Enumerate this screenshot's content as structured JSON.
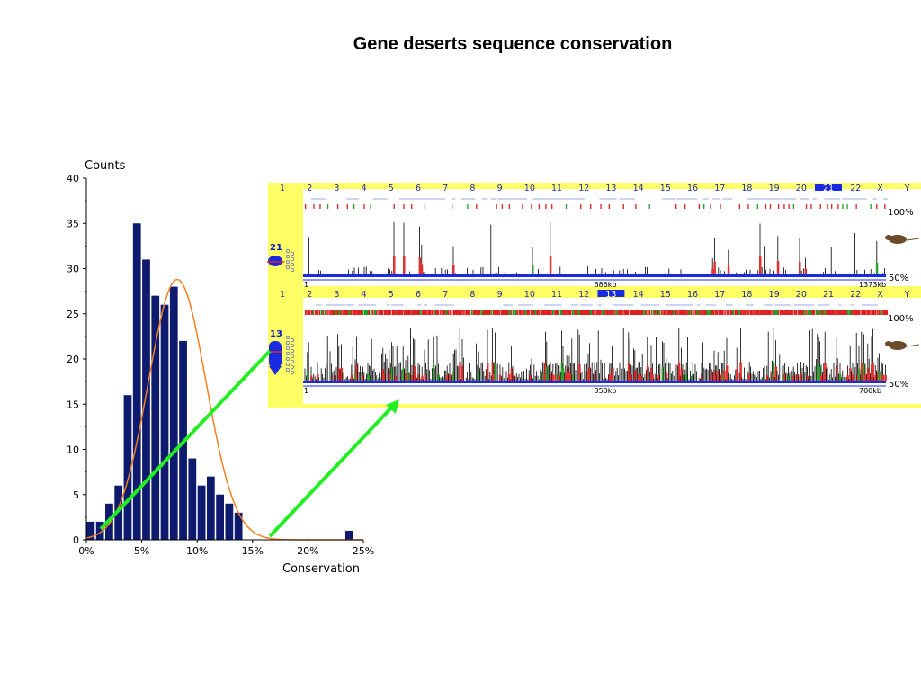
{
  "title": "Gene deserts sequence conservation",
  "chart_data": {
    "type": "bar",
    "ylabel": "Counts",
    "xlabel": "Conservation",
    "ylim": [
      0,
      40
    ],
    "xlim": [
      0,
      25
    ],
    "yticks": [
      "0",
      "5",
      "10",
      "15",
      "20",
      "25",
      "30",
      "35",
      "40"
    ],
    "xticks": [
      "0%",
      "5%",
      "10%",
      "15%",
      "20%",
      "25%"
    ],
    "bar_color": "#0d1a6e",
    "fit_color": "#f08020",
    "bin_width": 0.833,
    "bins": [
      {
        "x": 0.417,
        "value": 2
      },
      {
        "x": 1.25,
        "value": 2
      },
      {
        "x": 2.083,
        "value": 4
      },
      {
        "x": 2.917,
        "value": 6
      },
      {
        "x": 3.75,
        "value": 16
      },
      {
        "x": 4.583,
        "value": 35
      },
      {
        "x": 5.417,
        "value": 31
      },
      {
        "x": 6.25,
        "value": 27
      },
      {
        "x": 7.083,
        "value": 26
      },
      {
        "x": 7.917,
        "value": 28
      },
      {
        "x": 8.75,
        "value": 22
      },
      {
        "x": 9.583,
        "value": 9
      },
      {
        "x": 10.417,
        "value": 6
      },
      {
        "x": 11.25,
        "value": 7
      },
      {
        "x": 12.083,
        "value": 5
      },
      {
        "x": 12.917,
        "value": 4
      },
      {
        "x": 13.75,
        "value": 3
      },
      {
        "x": 23.75,
        "value": 1
      }
    ],
    "fit": {
      "type": "gaussian",
      "mean": 8.2,
      "sd": 2.6,
      "peak": 28.8
    }
  },
  "browser": {
    "chromosomes": [
      "1",
      "2",
      "3",
      "4",
      "5",
      "6",
      "7",
      "8",
      "9",
      "10",
      "11",
      "12",
      "13",
      "14",
      "15",
      "16",
      "17",
      "18",
      "19",
      "20",
      "21",
      "22",
      "X",
      "Y"
    ],
    "panels": [
      {
        "highlight": "21",
        "chr_label": "21",
        "scale": [
          "1",
          "686kb",
          "1373kb"
        ],
        "pct_top": "100%",
        "pct_bottom": "50%"
      },
      {
        "highlight": "13",
        "chr_label": "13",
        "scale": [
          "1",
          "350kb",
          "700kb"
        ],
        "pct_top": "100%",
        "pct_bottom": "50%"
      }
    ],
    "arrow_color": "#22ee22",
    "panel_bg": "#ffff66"
  }
}
